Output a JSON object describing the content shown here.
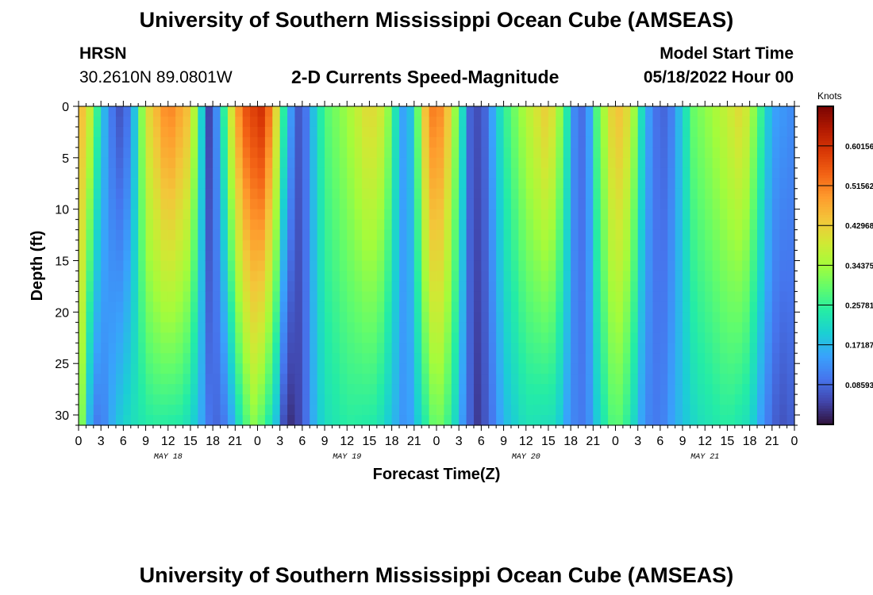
{
  "header": {
    "title": "University of Southern Mississippi Ocean Cube (AMSEAS)",
    "station": "HRSN",
    "coords": "30.2610N  89.0801W",
    "subtitle": "2-D Currents Speed-Magnitude",
    "model_start_label": "Model Start Time",
    "model_start_value": "05/18/2022 Hour 00"
  },
  "footer": {
    "repeated_title": "University of Southern Mississippi Ocean Cube (AMSEAS)"
  },
  "colors": {
    "palette": [
      "#30123b",
      "#4145ab",
      "#4675ed",
      "#39a2fc",
      "#1bcfd4",
      "#24eca6",
      "#61fc6c",
      "#a4fc3b",
      "#d1e834",
      "#f3c63a",
      "#fe9b2d",
      "#f36315",
      "#d93806",
      "#b11901",
      "#7a0402"
    ]
  },
  "chart_data": {
    "type": "heatmap",
    "title": "2-D Currents Speed-Magnitude",
    "xlabel": "Forecast Time(Z)",
    "ylabel": "Depth (ft)",
    "x_tick_labels": [
      "0",
      "3",
      "6",
      "9",
      "12",
      "15",
      "18",
      "21",
      "0",
      "3",
      "6",
      "9",
      "12",
      "15",
      "18",
      "21",
      "0",
      "3",
      "6",
      "9",
      "12",
      "15",
      "18",
      "21",
      "0",
      "3",
      "6",
      "9",
      "12",
      "15",
      "18",
      "21",
      "0"
    ],
    "x_range_hours": [
      0,
      96
    ],
    "day_labels": [
      "MAY 18",
      "MAY 19",
      "MAY 20",
      "MAY 21"
    ],
    "y_ticks": [
      0,
      5,
      10,
      15,
      20,
      25,
      30
    ],
    "y_range": [
      0,
      31
    ],
    "colorbar": {
      "label": "Knots",
      "range": [
        0.0,
        0.687
      ],
      "ticks": [
        0.60156,
        0.51562,
        0.42968,
        0.34375,
        0.25781,
        0.17187,
        0.08593
      ],
      "tick_labels": [
        "0.60156",
        "0.51562",
        "0.42968",
        "0.34375",
        "0.25781",
        "0.17187",
        "0.08593"
      ]
    },
    "surface_speed_knots": [
      {
        "t": 0,
        "v": 0.48
      },
      {
        "t": 1.5,
        "v": 0.38
      },
      {
        "t": 3,
        "v": 0.2
      },
      {
        "t": 4.5,
        "v": 0.1
      },
      {
        "t": 6,
        "v": 0.05
      },
      {
        "t": 7.5,
        "v": 0.18
      },
      {
        "t": 9,
        "v": 0.4
      },
      {
        "t": 12,
        "v": 0.52
      },
      {
        "t": 15,
        "v": 0.44
      },
      {
        "t": 16.5,
        "v": 0.2
      },
      {
        "t": 17.5,
        "v": 0.05
      },
      {
        "t": 19,
        "v": 0.16
      },
      {
        "t": 20,
        "v": 0.35
      },
      {
        "t": 22,
        "v": 0.55
      },
      {
        "t": 24.5,
        "v": 0.6
      },
      {
        "t": 26,
        "v": 0.5
      },
      {
        "t": 27.5,
        "v": 0.25
      },
      {
        "t": 29,
        "v": 0.08
      },
      {
        "t": 30,
        "v": 0.06
      },
      {
        "t": 31.5,
        "v": 0.18
      },
      {
        "t": 33,
        "v": 0.28
      },
      {
        "t": 36,
        "v": 0.34
      },
      {
        "t": 39,
        "v": 0.42
      },
      {
        "t": 41,
        "v": 0.38
      },
      {
        "t": 43,
        "v": 0.18
      },
      {
        "t": 44,
        "v": 0.12
      },
      {
        "t": 45.5,
        "v": 0.3
      },
      {
        "t": 47,
        "v": 0.52
      },
      {
        "t": 49,
        "v": 0.5
      },
      {
        "t": 51,
        "v": 0.28
      },
      {
        "t": 52.5,
        "v": 0.08
      },
      {
        "t": 54,
        "v": 0.05
      },
      {
        "t": 55.5,
        "v": 0.15
      },
      {
        "t": 57,
        "v": 0.25
      },
      {
        "t": 60,
        "v": 0.36
      },
      {
        "t": 63,
        "v": 0.44
      },
      {
        "t": 65,
        "v": 0.3
      },
      {
        "t": 66.5,
        "v": 0.12
      },
      {
        "t": 68,
        "v": 0.08
      },
      {
        "t": 69.5,
        "v": 0.28
      },
      {
        "t": 72,
        "v": 0.46
      },
      {
        "t": 74,
        "v": 0.4
      },
      {
        "t": 75.5,
        "v": 0.22
      },
      {
        "t": 77,
        "v": 0.1
      },
      {
        "t": 79,
        "v": 0.08
      },
      {
        "t": 81,
        "v": 0.2
      },
      {
        "t": 82.5,
        "v": 0.3
      },
      {
        "t": 86,
        "v": 0.36
      },
      {
        "t": 89,
        "v": 0.42
      },
      {
        "t": 91,
        "v": 0.3
      },
      {
        "t": 93,
        "v": 0.15
      },
      {
        "t": 96,
        "v": 0.12
      }
    ],
    "bottom_speed_knots": [
      {
        "t": 0,
        "v": 0.4
      },
      {
        "t": 1,
        "v": 0.22
      },
      {
        "t": 2,
        "v": 0.1
      },
      {
        "t": 3.5,
        "v": 0.12
      },
      {
        "t": 5,
        "v": 0.18
      },
      {
        "t": 7,
        "v": 0.22
      },
      {
        "t": 10,
        "v": 0.25
      },
      {
        "t": 14,
        "v": 0.24
      },
      {
        "t": 16,
        "v": 0.18
      },
      {
        "t": 17.5,
        "v": 0.1
      },
      {
        "t": 19,
        "v": 0.08
      },
      {
        "t": 20.5,
        "v": 0.15
      },
      {
        "t": 22,
        "v": 0.26
      },
      {
        "t": 23.5,
        "v": 0.32
      },
      {
        "t": 25,
        "v": 0.27
      },
      {
        "t": 26.5,
        "v": 0.18
      },
      {
        "t": 27.5,
        "v": 0.06
      },
      {
        "t": 28.5,
        "v": 0.03
      },
      {
        "t": 30,
        "v": 0.06
      },
      {
        "t": 31.5,
        "v": 0.16
      },
      {
        "t": 33,
        "v": 0.22
      },
      {
        "t": 36,
        "v": 0.25
      },
      {
        "t": 40,
        "v": 0.24
      },
      {
        "t": 42,
        "v": 0.18
      },
      {
        "t": 44,
        "v": 0.12
      },
      {
        "t": 46,
        "v": 0.22
      },
      {
        "t": 48,
        "v": 0.32
      },
      {
        "t": 50,
        "v": 0.25
      },
      {
        "t": 52,
        "v": 0.1
      },
      {
        "t": 53.5,
        "v": 0.04
      },
      {
        "t": 55,
        "v": 0.08
      },
      {
        "t": 57,
        "v": 0.17
      },
      {
        "t": 60,
        "v": 0.23
      },
      {
        "t": 64,
        "v": 0.22
      },
      {
        "t": 66,
        "v": 0.12
      },
      {
        "t": 68,
        "v": 0.1
      },
      {
        "t": 70,
        "v": 0.22
      },
      {
        "t": 72,
        "v": 0.3
      },
      {
        "t": 74,
        "v": 0.24
      },
      {
        "t": 76,
        "v": 0.12
      },
      {
        "t": 78,
        "v": 0.1
      },
      {
        "t": 80,
        "v": 0.16
      },
      {
        "t": 83,
        "v": 0.22
      },
      {
        "t": 87,
        "v": 0.25
      },
      {
        "t": 90,
        "v": 0.22
      },
      {
        "t": 92,
        "v": 0.12
      },
      {
        "t": 94,
        "v": 0.06
      },
      {
        "t": 96,
        "v": 0.08
      }
    ]
  }
}
